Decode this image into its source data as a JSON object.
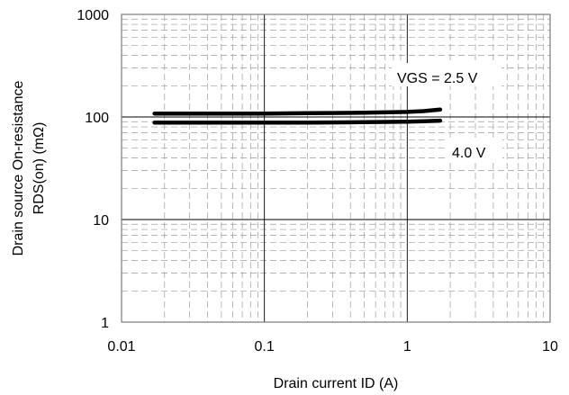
{
  "chart_data": {
    "type": "line",
    "title": "",
    "xlabel": "Drain current ID (A)",
    "ylabel": [
      "Drain source On-resistance",
      "RDS(on) (mΩ)"
    ],
    "xscale": "log",
    "yscale": "log",
    "xlim": [
      0.01,
      10
    ],
    "ylim": [
      1,
      1000
    ],
    "x_ticks": [
      "0.01",
      "0.1",
      "1",
      "10"
    ],
    "y_ticks": [
      "1",
      "10",
      "100",
      "1000"
    ],
    "grid": {
      "major": true,
      "minor": true,
      "minor_style": "dashed"
    },
    "series": [
      {
        "label": "VGS = 2.5 V",
        "color": "#000000",
        "x": [
          0.017,
          0.03,
          0.05,
          0.1,
          0.2,
          0.5,
          1.0,
          1.3,
          1.7
        ],
        "y": [
          108,
          108,
          108,
          108,
          109,
          110,
          112,
          114,
          118
        ]
      },
      {
        "label": "4.0 V",
        "color": "#000000",
        "x": [
          0.017,
          0.03,
          0.05,
          0.1,
          0.2,
          0.5,
          1.0,
          1.3,
          1.7
        ],
        "y": [
          88,
          88,
          88,
          88,
          88,
          89,
          90,
          91,
          92
        ]
      }
    ]
  }
}
